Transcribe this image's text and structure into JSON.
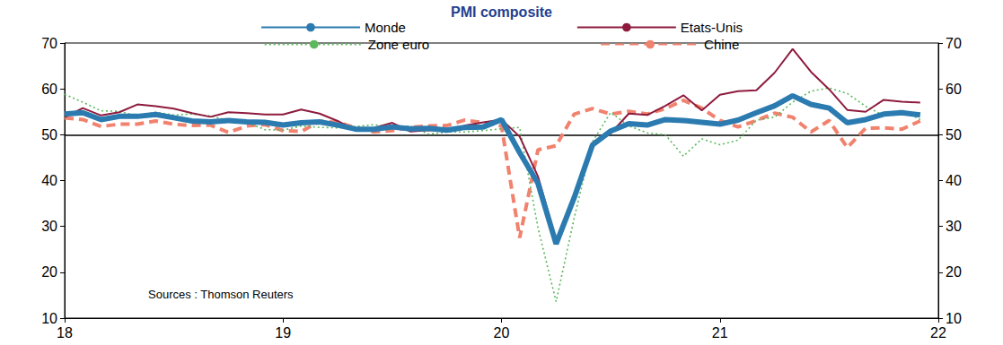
{
  "chart_data": {
    "type": "line",
    "title": "PMI composite",
    "x": [
      18.0,
      18.083,
      18.167,
      18.25,
      18.333,
      18.417,
      18.5,
      18.583,
      18.667,
      18.75,
      18.833,
      18.917,
      19.0,
      19.083,
      19.167,
      19.25,
      19.333,
      19.417,
      19.5,
      19.583,
      19.667,
      19.75,
      19.833,
      19.917,
      20.0,
      20.083,
      20.167,
      20.25,
      20.333,
      20.417,
      20.5,
      20.583,
      20.667,
      20.75,
      20.833,
      20.917,
      21.0,
      21.083,
      21.167,
      21.25,
      21.333,
      21.417,
      21.5,
      21.583,
      21.667,
      21.75,
      21.833,
      21.917
    ],
    "xlim": [
      18,
      22
    ],
    "xticks": [
      18,
      19,
      20,
      21,
      22
    ],
    "ylim": [
      10,
      70
    ],
    "yticks": [
      10,
      20,
      30,
      40,
      50,
      60,
      70
    ],
    "y2lim": [
      10,
      70
    ],
    "y2ticks": [
      10,
      20,
      30,
      40,
      50,
      60,
      70
    ],
    "grid": false,
    "legend": "top",
    "marker": "none",
    "reference_line": 50,
    "annotations": [
      {
        "text": "Sources : Thomson Reuters"
      }
    ],
    "series": [
      {
        "name": "Monde",
        "color": "#2b7bb0",
        "line_style": "solid",
        "values": [
          54.5,
          54.8,
          53.3,
          54.0,
          54.0,
          54.4,
          53.7,
          53.0,
          52.8,
          53.1,
          52.8,
          52.7,
          52.1,
          52.6,
          52.8,
          52.1,
          51.2,
          51.2,
          51.7,
          51.3,
          51.4,
          51.0,
          51.6,
          51.7,
          53.3,
          46.1,
          39.4,
          26.2,
          36.3,
          47.8,
          50.8,
          52.4,
          52.1,
          53.3,
          53.1,
          52.7,
          52.3,
          53.2,
          54.8,
          56.3,
          58.5,
          56.6,
          55.8,
          52.6,
          53.3,
          54.5,
          54.8,
          54.3
        ]
      },
      {
        "name": "Etats-Unis",
        "color": "#8e1b3e",
        "line_style": "solid",
        "values": [
          53.8,
          55.8,
          54.2,
          54.9,
          56.6,
          56.2,
          55.7,
          54.7,
          53.9,
          54.9,
          54.7,
          54.4,
          54.4,
          55.5,
          54.6,
          53.0,
          50.9,
          51.5,
          52.6,
          50.7,
          51.0,
          50.9,
          52.0,
          52.7,
          53.3,
          49.6,
          40.9,
          27.0,
          37.0,
          47.9,
          50.3,
          54.6,
          54.3,
          56.3,
          58.6,
          55.3,
          58.7,
          59.5,
          59.7,
          63.5,
          68.7,
          63.7,
          59.9,
          55.4,
          55.0,
          57.6,
          57.2,
          57.0
        ]
      },
      {
        "name": "Zone euro",
        "color": "#5cb85c",
        "line_style": "dotted",
        "values": [
          58.8,
          57.1,
          55.2,
          55.1,
          54.1,
          54.9,
          54.3,
          54.5,
          54.1,
          53.1,
          52.7,
          51.1,
          51.0,
          51.9,
          51.6,
          51.5,
          51.8,
          52.2,
          51.5,
          51.9,
          50.1,
          50.6,
          50.6,
          50.9,
          51.3,
          51.6,
          29.7,
          13.6,
          31.9,
          48.5,
          54.9,
          51.9,
          50.4,
          50.0,
          45.3,
          49.1,
          47.8,
          48.8,
          53.2,
          53.8,
          57.1,
          59.5,
          60.2,
          59.0,
          56.2,
          54.2,
          55.4,
          53.3
        ]
      },
      {
        "name": "Chine",
        "color": "#f0826e",
        "line_style": "dashed",
        "values": [
          53.7,
          53.3,
          51.8,
          52.3,
          52.3,
          53.0,
          52.3,
          52.0,
          52.1,
          50.5,
          51.9,
          52.2,
          50.9,
          50.7,
          52.9,
          52.7,
          51.5,
          50.6,
          50.9,
          51.6,
          51.9,
          52.0,
          53.2,
          52.6,
          51.9,
          27.5,
          46.7,
          47.6,
          54.5,
          55.7,
          54.5,
          55.1,
          54.5,
          55.7,
          57.5,
          55.8,
          53.1,
          51.7,
          53.1,
          54.7,
          53.8,
          50.6,
          53.1,
          47.2,
          51.4,
          51.5,
          51.2,
          53.0
        ]
      }
    ]
  }
}
